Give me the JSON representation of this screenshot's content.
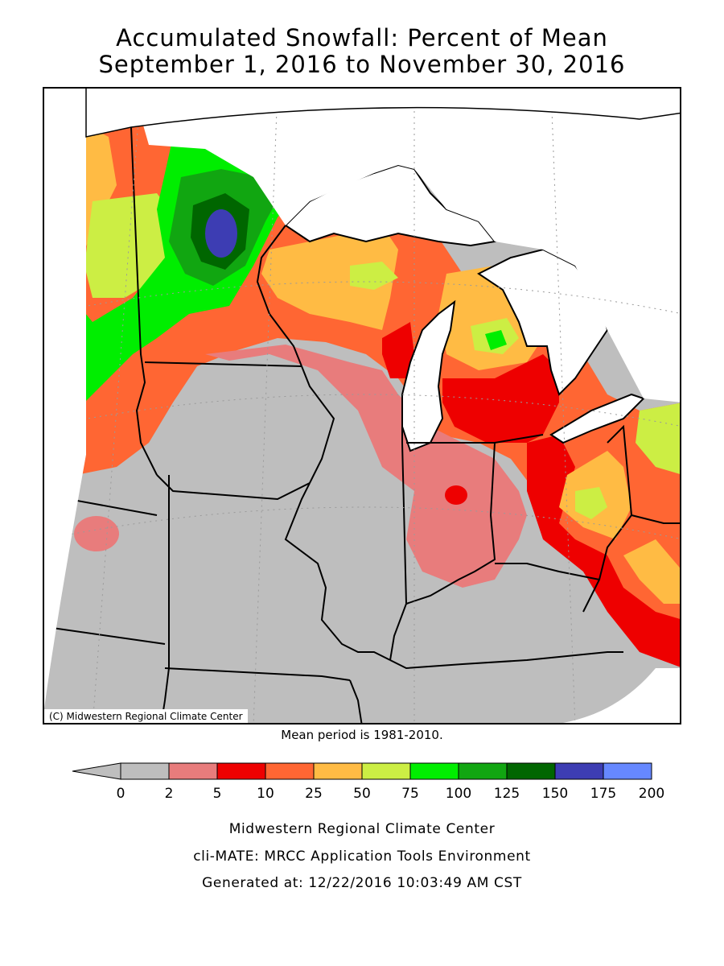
{
  "title_line1": "Accumulated Snowfall: Percent of Mean",
  "title_line2": "September 1, 2016 to November 30, 2016",
  "map": {
    "copyright": "(C) Midwestern Regional Climate Center",
    "water_color": "#ffffff",
    "no_data_color": "#bebebe",
    "region_fill_values_percent": {
      "n_minnesota_core": 175,
      "ne_minnesota": 125,
      "minnesota_arrowhead_ring": 100,
      "nw_minnesota": 50,
      "upper_peninsula_mi": 25,
      "northern_lower_mi_spot": 75,
      "southern_lower_mi": 10,
      "n_indiana_spot": 10,
      "nw_ohio": 10,
      "central_ohio": 50,
      "w_pennsylvania": 75,
      "south_of_snow_line": 0
    }
  },
  "mean_period": "Mean period is 1981-2010.",
  "legend": {
    "ticks": [
      "0",
      "2",
      "5",
      "10",
      "25",
      "50",
      "75",
      "100",
      "125",
      "150",
      "175",
      "200"
    ],
    "colors": [
      "#bebebe",
      "#bebebe",
      "#e87c7c",
      "#ee0000",
      "#ff6633",
      "#ffbb44",
      "#ccee44",
      "#00ee00",
      "#11a611",
      "#006600",
      "#3d3db3",
      "#6688ff"
    ]
  },
  "footer": {
    "line1": "Midwestern Regional Climate Center",
    "line2": "cli-MATE: MRCC Application Tools Environment",
    "line3": "Generated at: 12/22/2016 10:03:49 AM CST"
  }
}
